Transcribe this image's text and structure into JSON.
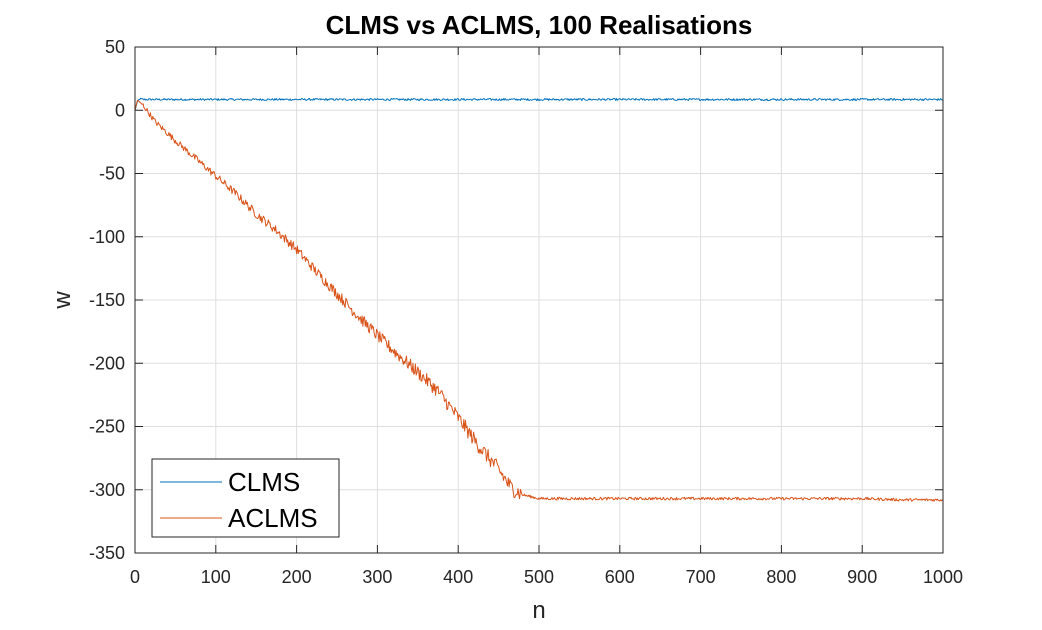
{
  "chart_data": {
    "type": "line",
    "title": "CLMS vs ACLMS, 100 Realisations",
    "xlabel": "n",
    "ylabel": "w",
    "xlim": [
      0,
      1000
    ],
    "ylim": [
      -350,
      50
    ],
    "xticks": [
      0,
      100,
      200,
      300,
      400,
      500,
      600,
      700,
      800,
      900,
      1000
    ],
    "yticks": [
      50,
      0,
      -50,
      -100,
      -150,
      -200,
      -250,
      -300,
      -350
    ],
    "grid": true,
    "legend_position": "bottom-left",
    "series": [
      {
        "name": "CLMS",
        "color": "#0072BD",
        "x": [
          0,
          3,
          6,
          10,
          20,
          50,
          100,
          200,
          300,
          400,
          500,
          600,
          700,
          800,
          900,
          1000
        ],
        "y": [
          0,
          7,
          9,
          8.5,
          8.5,
          8.5,
          8.5,
          8.5,
          8.5,
          8.5,
          8.5,
          8.5,
          8.5,
          8.5,
          8.5,
          8.5
        ]
      },
      {
        "name": "ACLMS",
        "color": "#D95319",
        "x": [
          0,
          3,
          10,
          25,
          50,
          75,
          100,
          125,
          150,
          175,
          200,
          225,
          250,
          275,
          300,
          325,
          350,
          375,
          400,
          425,
          450,
          465,
          480,
          500,
          550,
          600,
          650,
          700,
          750,
          800,
          850,
          900,
          950,
          1000
        ],
        "y": [
          0,
          8,
          4,
          -9,
          -24,
          -38,
          -52,
          -66,
          -82,
          -95,
          -110,
          -128,
          -145,
          -162,
          -178,
          -193,
          -207,
          -222,
          -243,
          -265,
          -284,
          -298,
          -304,
          -307,
          -307,
          -307,
          -307,
          -307,
          -307,
          -307,
          -307,
          -307,
          -308,
          -308
        ]
      }
    ]
  }
}
